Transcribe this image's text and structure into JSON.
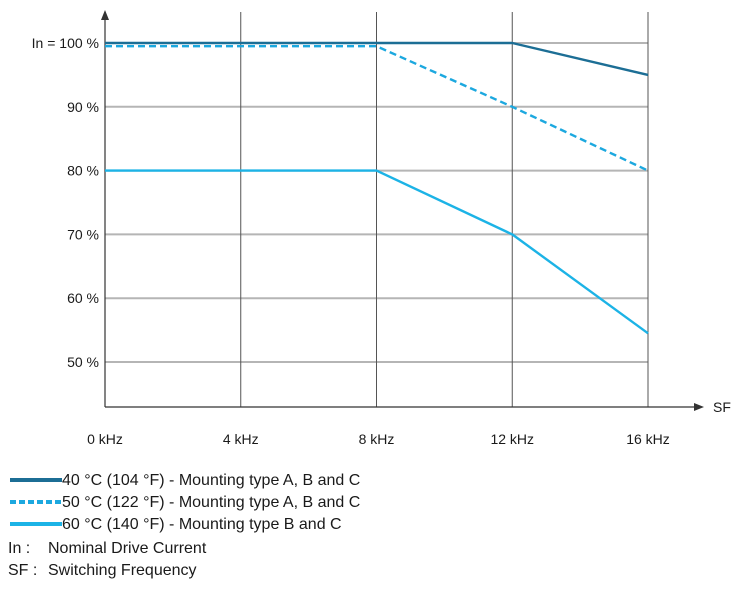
{
  "chart_data": {
    "type": "line",
    "x": [
      0,
      4,
      8,
      12,
      16
    ],
    "x_tick_labels": [
      "0 kHz",
      "4 kHz",
      "8 kHz",
      "12 kHz",
      "16 kHz"
    ],
    "xlabel": "SF",
    "xlim": [
      0,
      16
    ],
    "y_ticks": [
      50,
      60,
      70,
      80,
      90,
      100
    ],
    "y_tick_labels": [
      "50 %",
      "60 %",
      "70 %",
      "80 %",
      "90 %",
      "In = 100 %"
    ],
    "ylim": [
      45,
      103
    ],
    "grid": true,
    "legend_position": "bottom",
    "series": [
      {
        "name": "40 °C (104 °F) - Mounting type A, B and C",
        "color": "#1c6e95",
        "style": "solid",
        "values": [
          100,
          100,
          100,
          100,
          95
        ]
      },
      {
        "name": "50 °C (122 °F) - Mounting type A, B and C",
        "color": "#1ca8df",
        "style": "dashed",
        "values": [
          99.5,
          99.5,
          99.5,
          90,
          80
        ]
      },
      {
        "name": "60 °C (140 °F) - Mounting type B and C",
        "color": "#1cb3e6",
        "style": "solid",
        "values": [
          80,
          80,
          80,
          70,
          54.5
        ]
      }
    ],
    "notes": [
      {
        "key": "In :",
        "text": "Nominal Drive Current"
      },
      {
        "key": "SF :",
        "text": "Switching Frequency"
      }
    ]
  }
}
